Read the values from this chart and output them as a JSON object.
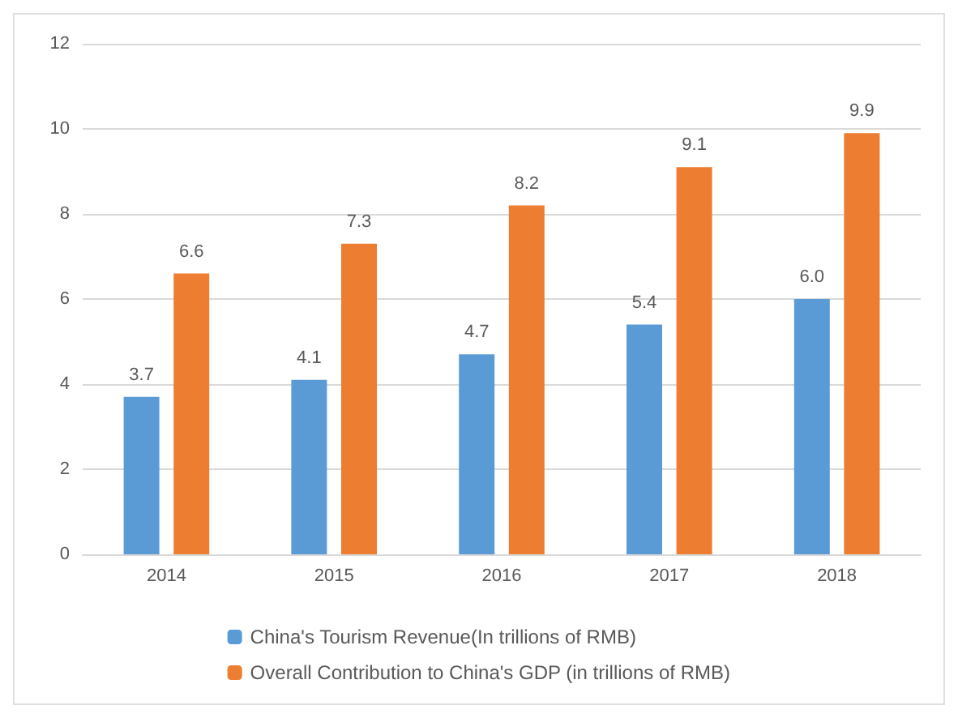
{
  "chart_data": {
    "type": "bar",
    "categories": [
      "2014",
      "2015",
      "2016",
      "2017",
      "2018"
    ],
    "series": [
      {
        "name": "China's Tourism Revenue(In trillions of RMB)",
        "color": "#5b9bd5",
        "values": [
          3.7,
          4.1,
          4.7,
          5.4,
          6.0
        ],
        "value_labels": [
          "3.7",
          "4.1",
          "4.7",
          "5.4",
          "6.0"
        ]
      },
      {
        "name": "Overall Contribution to China's GDP (in trillions of RMB)",
        "color": "#ed7d31",
        "values": [
          6.6,
          7.3,
          8.2,
          9.1,
          9.9
        ],
        "value_labels": [
          "6.6",
          "7.3",
          "8.2",
          "9.1",
          "9.9"
        ]
      }
    ],
    "ylim": [
      0,
      12
    ],
    "yticks": [
      0,
      2,
      4,
      6,
      8,
      10,
      12
    ],
    "grid": "y",
    "legend": "bottom"
  }
}
